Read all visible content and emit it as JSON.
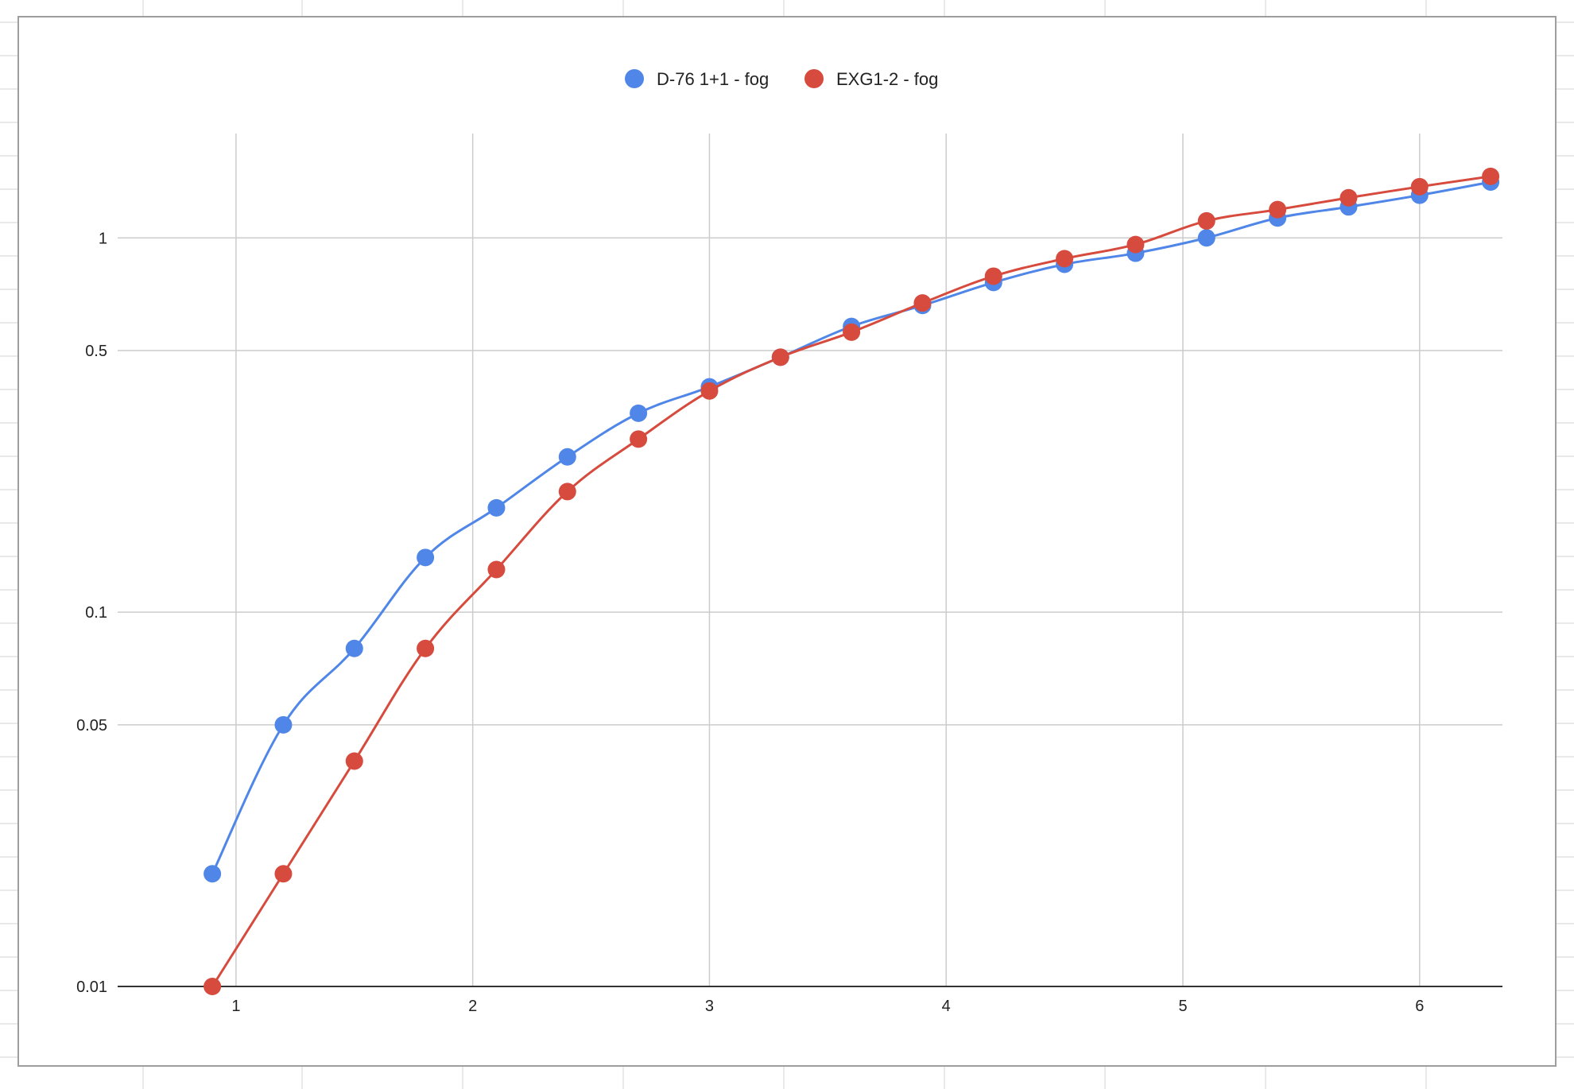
{
  "chart_data": {
    "type": "line",
    "title": "",
    "xlabel": "",
    "ylabel": "",
    "y_scale": "log",
    "xlim": [
      0.5,
      6.35
    ],
    "ylim": [
      0.01,
      1.9
    ],
    "x_ticks": [
      "1",
      "2",
      "3",
      "4",
      "5",
      "6"
    ],
    "y_ticks": [
      "0.01",
      "0.05",
      "0.1",
      "0.5",
      "1"
    ],
    "grid": true,
    "smooth": true,
    "legend_position": "top",
    "x": [
      0.9,
      1.2,
      1.5,
      1.8,
      2.1,
      2.4,
      2.7,
      3.0,
      3.3,
      3.6,
      3.9,
      4.2,
      4.5,
      4.8,
      5.1,
      5.4,
      5.7,
      6.0,
      6.3
    ],
    "series": [
      {
        "name": "D-76 1+1 - fog",
        "color": "#4f86e8",
        "values": [
          0.02,
          0.05,
          0.08,
          0.14,
          0.19,
          0.26,
          0.34,
          0.4,
          0.48,
          0.58,
          0.66,
          0.76,
          0.85,
          0.91,
          1.0,
          1.13,
          1.21,
          1.3,
          1.41
        ]
      },
      {
        "name": "EXG1-2 - fog",
        "color": "#d64b3d",
        "values": [
          0.01,
          0.02,
          0.04,
          0.08,
          0.13,
          0.21,
          0.29,
          0.39,
          0.48,
          0.56,
          0.67,
          0.79,
          0.88,
          0.96,
          1.11,
          1.19,
          1.28,
          1.37,
          1.46
        ]
      }
    ]
  }
}
